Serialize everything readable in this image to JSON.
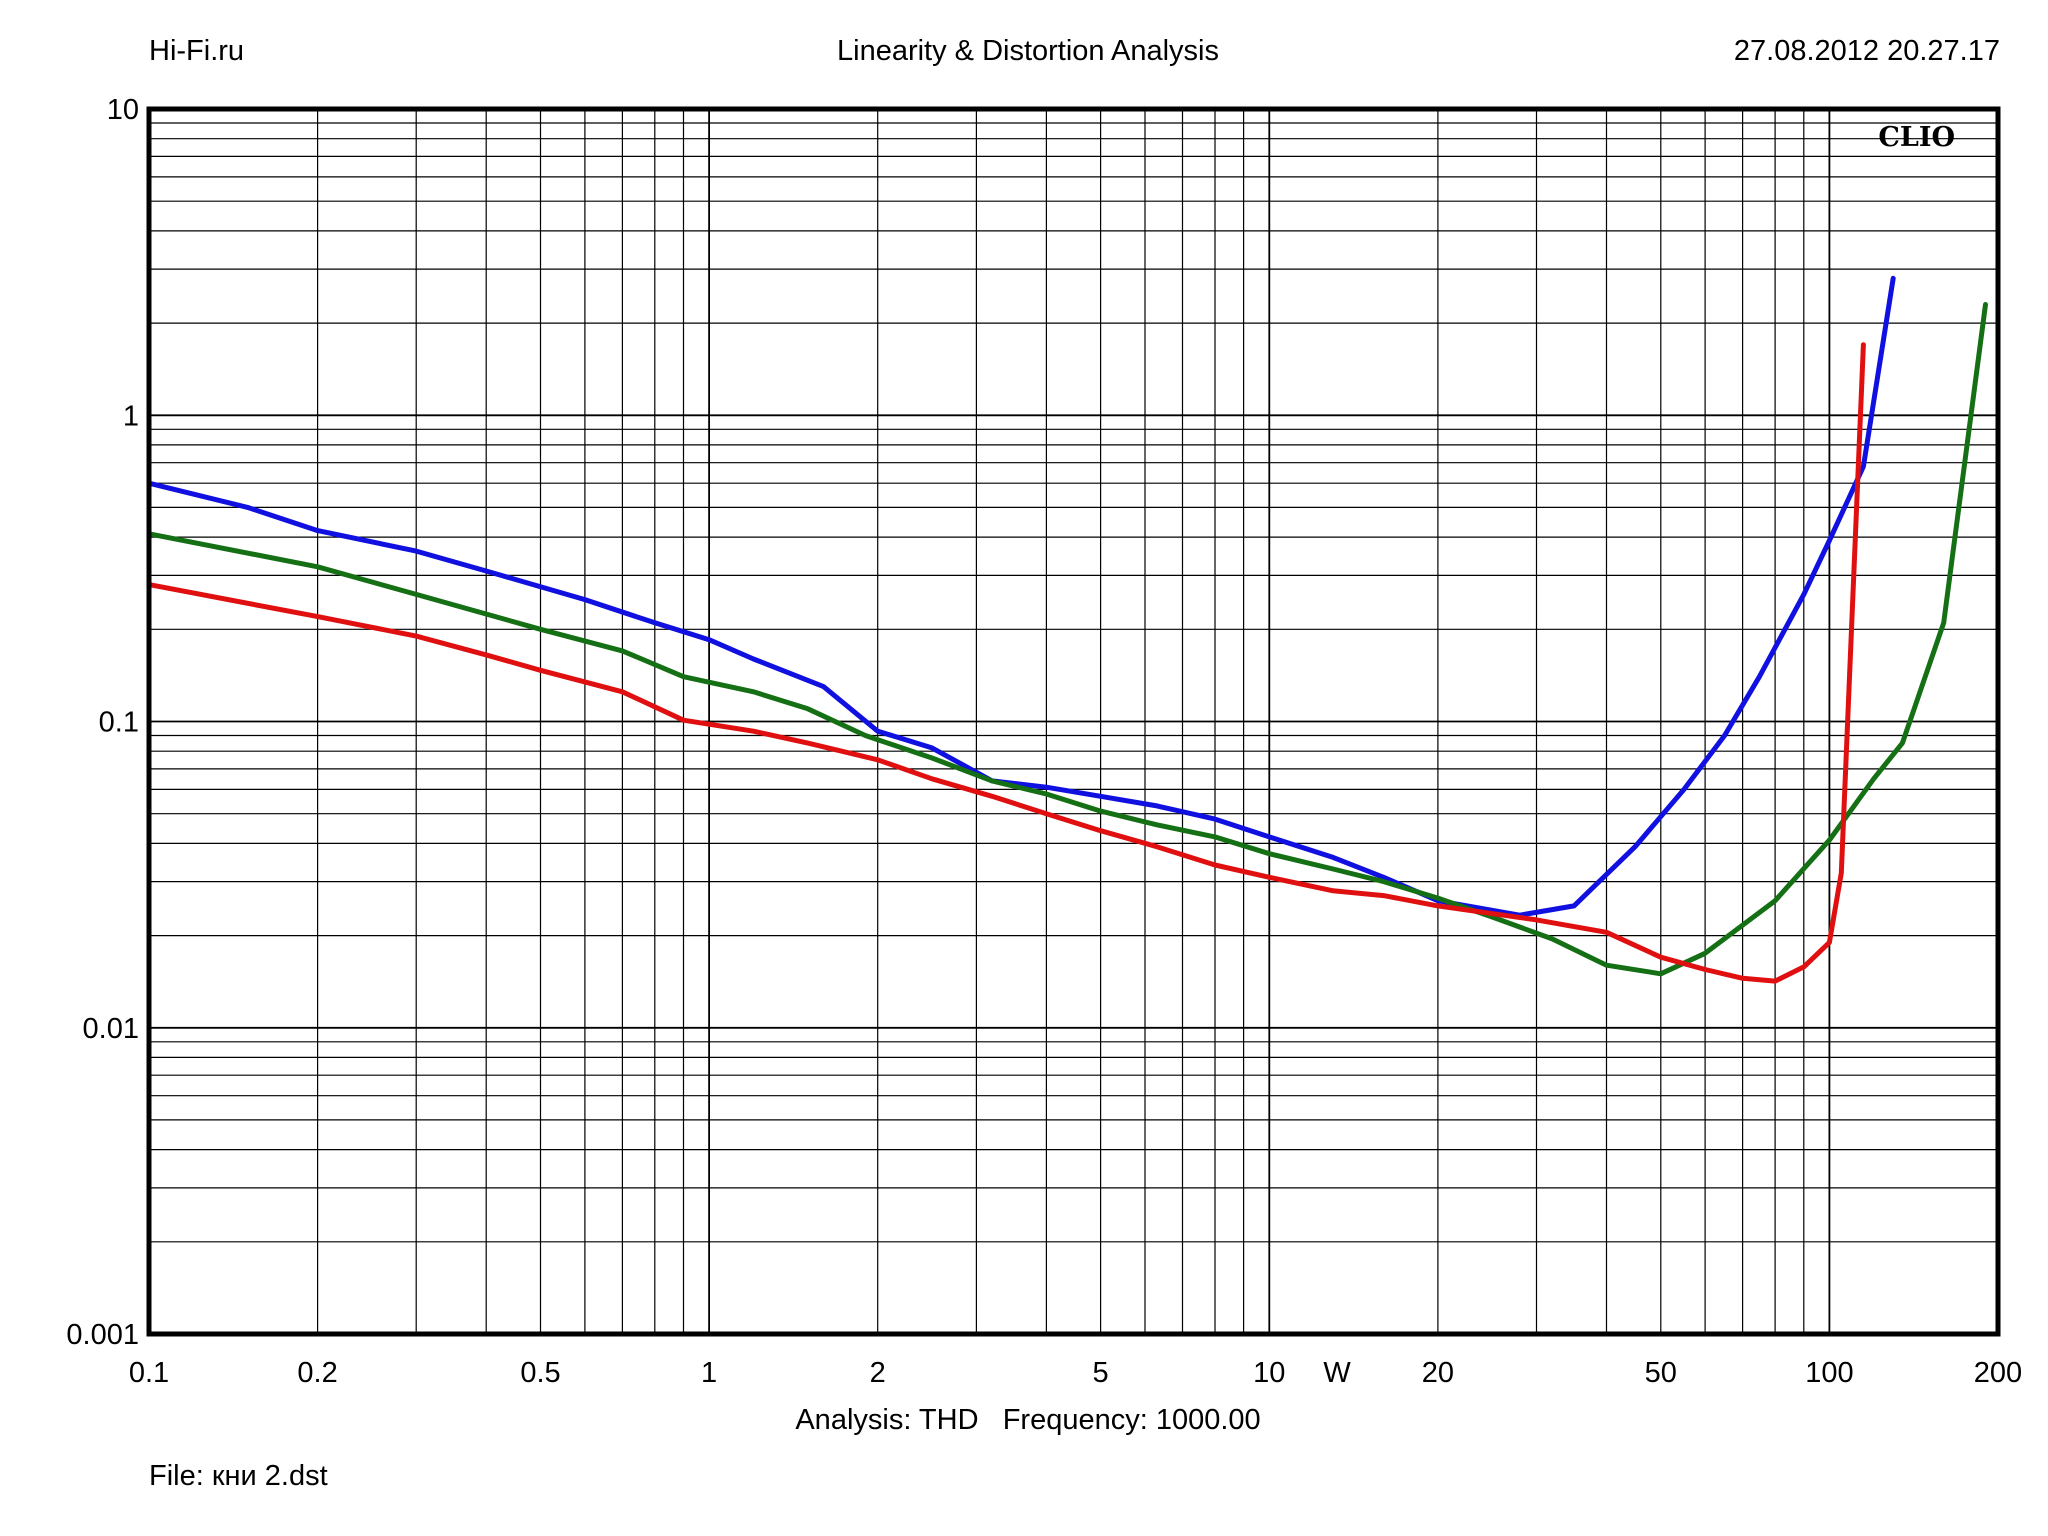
{
  "header": {
    "left": "Hi-Fi.ru",
    "center": "Linearity & Distortion Analysis",
    "right": "27.08.2012 20.27.17"
  },
  "footer": {
    "analysis": "Analysis: THD   Frequency: 1000.00",
    "file": "File: кни 2.dst"
  },
  "chart_data": {
    "type": "line",
    "brand": "CLIO",
    "xscale": "log",
    "yscale": "log",
    "xlim": [
      0.1,
      200
    ],
    "ylim": [
      0.001,
      10
    ],
    "grid": true,
    "xlabel": "W",
    "x_ticks": [
      {
        "v": 0.1,
        "label": "0.1"
      },
      {
        "v": 0.2,
        "label": "0.2"
      },
      {
        "v": 0.5,
        "label": "0.5"
      },
      {
        "v": 1,
        "label": "1"
      },
      {
        "v": 2,
        "label": "2"
      },
      {
        "v": 5,
        "label": "5"
      },
      {
        "v": 10,
        "label": "10"
      },
      {
        "v": 20,
        "label": "20"
      },
      {
        "v": 50,
        "label": "50"
      },
      {
        "v": 100,
        "label": "100"
      },
      {
        "v": 200,
        "label": "200"
      }
    ],
    "y_ticks": [
      {
        "v": 10,
        "label": "10"
      },
      {
        "v": 1,
        "label": "1"
      },
      {
        "v": 0.1,
        "label": "0.1"
      },
      {
        "v": 0.01,
        "label": "0.01"
      },
      {
        "v": 0.001,
        "label": "0.001"
      }
    ],
    "series": [
      {
        "color": "#1010e0",
        "points": [
          [
            0.1,
            0.6
          ],
          [
            0.15,
            0.5
          ],
          [
            0.2,
            0.42
          ],
          [
            0.3,
            0.36
          ],
          [
            0.4,
            0.31
          ],
          [
            0.6,
            0.25
          ],
          [
            0.8,
            0.21
          ],
          [
            1.0,
            0.185
          ],
          [
            1.2,
            0.16
          ],
          [
            1.6,
            0.13
          ],
          [
            2.0,
            0.093
          ],
          [
            2.5,
            0.082
          ],
          [
            3.2,
            0.064
          ],
          [
            4.0,
            0.061
          ],
          [
            5.0,
            0.057
          ],
          [
            6.3,
            0.053
          ],
          [
            8.0,
            0.048
          ],
          [
            10,
            0.042
          ],
          [
            13,
            0.036
          ],
          [
            16,
            0.031
          ],
          [
            20,
            0.026
          ],
          [
            28,
            0.0233
          ],
          [
            35,
            0.025
          ],
          [
            45,
            0.039
          ],
          [
            55,
            0.06
          ],
          [
            65,
            0.09
          ],
          [
            75,
            0.14
          ],
          [
            90,
            0.26
          ],
          [
            100,
            0.39
          ],
          [
            115,
            0.68
          ],
          [
            130,
            2.8
          ]
        ]
      },
      {
        "color": "#157015",
        "points": [
          [
            0.1,
            0.41
          ],
          [
            0.2,
            0.32
          ],
          [
            0.3,
            0.26
          ],
          [
            0.5,
            0.2
          ],
          [
            0.7,
            0.17
          ],
          [
            0.9,
            0.14
          ],
          [
            1.2,
            0.125
          ],
          [
            1.5,
            0.11
          ],
          [
            1.9,
            0.09
          ],
          [
            2.5,
            0.076
          ],
          [
            3.2,
            0.064
          ],
          [
            4.0,
            0.058
          ],
          [
            5.0,
            0.051
          ],
          [
            6.3,
            0.046
          ],
          [
            8.0,
            0.042
          ],
          [
            10,
            0.037
          ],
          [
            13,
            0.033
          ],
          [
            16,
            0.03
          ],
          [
            20,
            0.0265
          ],
          [
            25,
            0.023
          ],
          [
            32,
            0.0195
          ],
          [
            40,
            0.016
          ],
          [
            50,
            0.015
          ],
          [
            60,
            0.0175
          ],
          [
            80,
            0.026
          ],
          [
            100,
            0.041
          ],
          [
            120,
            0.065
          ],
          [
            135,
            0.085
          ],
          [
            160,
            0.21
          ],
          [
            190,
            2.3
          ]
        ]
      },
      {
        "color": "#e01010",
        "points": [
          [
            0.1,
            0.28
          ],
          [
            0.2,
            0.22
          ],
          [
            0.3,
            0.19
          ],
          [
            0.4,
            0.165
          ],
          [
            0.5,
            0.147
          ],
          [
            0.7,
            0.125
          ],
          [
            0.9,
            0.101
          ],
          [
            1.2,
            0.093
          ],
          [
            1.5,
            0.085
          ],
          [
            2.0,
            0.075
          ],
          [
            2.5,
            0.065
          ],
          [
            3.2,
            0.057
          ],
          [
            4.0,
            0.05
          ],
          [
            5.0,
            0.044
          ],
          [
            6.3,
            0.039
          ],
          [
            8.0,
            0.034
          ],
          [
            10,
            0.031
          ],
          [
            13,
            0.028
          ],
          [
            16,
            0.027
          ],
          [
            20,
            0.025
          ],
          [
            30,
            0.0225
          ],
          [
            40,
            0.0205
          ],
          [
            50,
            0.017
          ],
          [
            60,
            0.0155
          ],
          [
            70,
            0.0145
          ],
          [
            80,
            0.0142
          ],
          [
            90,
            0.0158
          ],
          [
            100,
            0.019
          ],
          [
            105,
            0.032
          ],
          [
            115,
            1.7
          ]
        ]
      }
    ]
  }
}
